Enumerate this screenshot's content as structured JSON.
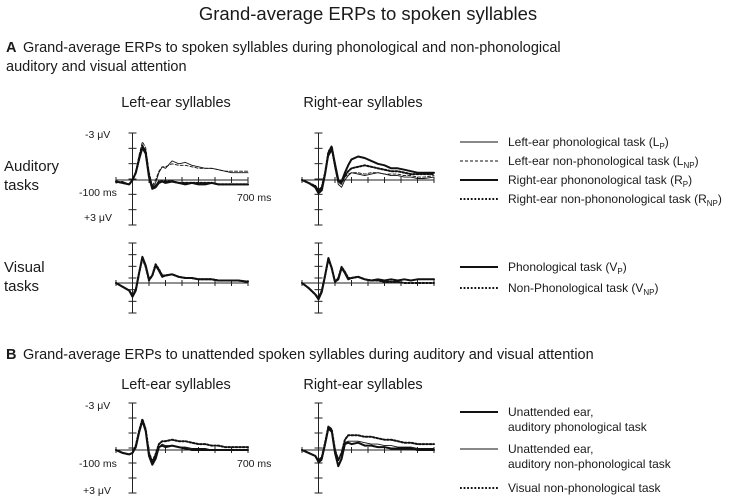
{
  "figure": {
    "title": "Grand-average ERPs to spoken syllables",
    "panel_a": {
      "letter": "A",
      "title_line1": "Grand-average ERPs to spoken syllables during phonological and non-phonological",
      "title_line2": "auditory and visual attention",
      "col_left": "Left-ear syllables",
      "col_right": "Right-ear syllables",
      "row_auditory_1": "Auditory",
      "row_auditory_2": "tasks",
      "row_visual_1": "Visual",
      "row_visual_2": "tasks",
      "axis_top": "-3 μV",
      "axis_bottom": "+3 μV",
      "axis_left": "-100 ms",
      "axis_right": "700 ms"
    },
    "panel_b": {
      "letter": "B",
      "title": "Grand-average ERPs to unattended spoken syllables during auditory and visual attention",
      "col_left": "Left-ear syllables",
      "col_right": "Right-ear syllables",
      "axis_top": "-3 μV",
      "axis_bottom": "+3 μV",
      "axis_left": "-100 ms",
      "axis_right": "700 ms"
    },
    "legend_a_auditory": [
      {
        "main": "Left-ear phonological task (L",
        "sub": "P",
        "close": ")",
        "style": "thin-solid"
      },
      {
        "main": "Left-ear non-phonological task (L",
        "sub": "NP",
        "close": ")",
        "style": "thin-dashed"
      },
      {
        "main": "Right-ear phononological task (R",
        "sub": "P",
        "close": ")",
        "style": "thick-solid"
      },
      {
        "main": "Right-ear non-phononological task (R",
        "sub": "NP",
        "close": ")",
        "style": "thick-dotted"
      }
    ],
    "legend_a_visual": [
      {
        "main": "Phonological task (V",
        "sub": "P",
        "close": ")",
        "style": "thick-solid"
      },
      {
        "main": "Non-Phonological task (V",
        "sub": "NP",
        "close": ")",
        "style": "thick-dotted"
      }
    ],
    "legend_b": [
      {
        "line1": "Unattended ear,",
        "line2": "auditory phonological task",
        "style": "thick-solid"
      },
      {
        "line1": "Unattended ear,",
        "line2": "auditory non-phonological task",
        "style": "thin-solid"
      },
      {
        "line1": "Visual non-phonological task",
        "line2": "",
        "style": "thick-dotted"
      }
    ]
  },
  "chart_data": [
    {
      "type": "line",
      "panel": "A - Auditory tasks - Left-ear syllables",
      "xlabel": "",
      "ylabel": "",
      "xlim": [
        -100,
        700
      ],
      "ylim": [
        3,
        -3
      ],
      "y_axis_inverted": true,
      "unit_x": "ms",
      "unit_y": "μV",
      "x": [
        -100,
        -60,
        -20,
        0,
        20,
        40,
        60,
        80,
        100,
        120,
        140,
        160,
        180,
        200,
        240,
        280,
        320,
        360,
        400,
        440,
        480,
        520,
        560,
        600,
        640,
        700
      ],
      "series": [
        {
          "name": "Left-ear phonological task (LP)",
          "style": "thin-solid",
          "values": [
            0.2,
            0.1,
            0.3,
            0.0,
            -0.5,
            -1.5,
            -2.4,
            -2.0,
            -0.5,
            0.5,
            0.2,
            -0.5,
            -0.9,
            -0.8,
            -1.3,
            -1.1,
            -1.2,
            -1.0,
            -0.9,
            -0.8,
            -0.8,
            -0.7,
            -0.6,
            -0.5,
            -0.5,
            -0.5
          ]
        },
        {
          "name": "Left-ear non-phonological task (LNP)",
          "style": "thin-dashed",
          "values": [
            0.2,
            0.1,
            0.3,
            0.0,
            -0.6,
            -1.7,
            -2.6,
            -2.2,
            -0.6,
            0.4,
            0.0,
            -0.6,
            -0.9,
            -0.9,
            -1.1,
            -1.0,
            -1.0,
            -0.9,
            -0.8,
            -0.8,
            -0.8,
            -0.7,
            -0.6,
            -0.6,
            -0.6,
            -0.6
          ]
        },
        {
          "name": "Right-ear phononological task (RP)",
          "style": "thick-solid",
          "values": [
            0.1,
            0.2,
            0.3,
            0.0,
            -0.5,
            -1.4,
            -2.2,
            -1.8,
            -0.2,
            0.6,
            0.5,
            0.2,
            0.1,
            0.2,
            0.1,
            0.2,
            0.3,
            0.2,
            0.3,
            0.3,
            0.2,
            0.3,
            0.3,
            0.3,
            0.3,
            0.3
          ]
        },
        {
          "name": "Right-ear non-phononological task (RNP)",
          "style": "thick-dotted",
          "values": [
            0.1,
            0.2,
            0.3,
            0.0,
            -0.5,
            -1.5,
            -2.3,
            -1.9,
            -0.3,
            0.5,
            0.4,
            0.1,
            0.1,
            0.1,
            0.1,
            0.2,
            0.2,
            0.2,
            0.2,
            0.2,
            0.2,
            0.3,
            0.3,
            0.3,
            0.3,
            0.3
          ]
        }
      ]
    },
    {
      "type": "line",
      "panel": "A - Auditory tasks - Right-ear syllables",
      "xlabel": "",
      "ylabel": "",
      "xlim": [
        -100,
        700
      ],
      "ylim": [
        3,
        -3
      ],
      "y_axis_inverted": true,
      "unit_x": "ms",
      "unit_y": "μV",
      "x": [
        -100,
        -60,
        -20,
        0,
        20,
        40,
        60,
        80,
        100,
        120,
        140,
        160,
        180,
        200,
        240,
        280,
        320,
        360,
        400,
        440,
        480,
        520,
        560,
        600,
        640,
        700
      ],
      "series": [
        {
          "name": "Left-ear phonological task (LP)",
          "style": "thin-solid",
          "values": [
            0.0,
            0.2,
            0.4,
            0.8,
            0.6,
            -0.5,
            -1.6,
            -2.0,
            -0.8,
            0.3,
            0.5,
            0.0,
            -0.3,
            -0.5,
            -0.4,
            -0.3,
            -0.4,
            -0.5,
            -0.4,
            -0.3,
            -0.3,
            -0.2,
            -0.2,
            -0.1,
            -0.1,
            -0.2
          ]
        },
        {
          "name": "Left-ear non-phonological task (LNP)",
          "style": "thin-dashed",
          "values": [
            0.0,
            0.2,
            0.4,
            0.7,
            0.5,
            -0.6,
            -1.7,
            -2.1,
            -0.9,
            0.2,
            0.3,
            -0.2,
            -0.4,
            -0.5,
            -0.5,
            -0.4,
            -0.5,
            -0.5,
            -0.4,
            -0.4,
            -0.4,
            -0.3,
            -0.3,
            -0.2,
            -0.2,
            -0.3
          ]
        },
        {
          "name": "Right-ear phononological task (RP)",
          "style": "thick-solid",
          "values": [
            0.0,
            0.2,
            0.5,
            0.9,
            0.7,
            -0.4,
            -1.8,
            -2.2,
            -1.1,
            0.0,
            0.1,
            -0.5,
            -1.0,
            -1.4,
            -1.6,
            -1.5,
            -1.3,
            -1.1,
            -1.0,
            -0.8,
            -0.8,
            -0.7,
            -0.6,
            -0.5,
            -0.5,
            -0.5
          ]
        },
        {
          "name": "Right-ear non-phononological task (RNP)",
          "style": "thick-dotted",
          "values": [
            0.0,
            0.2,
            0.4,
            0.7,
            0.5,
            -0.5,
            -1.9,
            -2.3,
            -1.0,
            0.1,
            0.2,
            -0.3,
            -0.6,
            -0.8,
            -0.9,
            -1.0,
            -0.9,
            -0.8,
            -0.7,
            -0.6,
            -0.6,
            -0.5,
            -0.4,
            -0.4,
            -0.4,
            -0.4
          ]
        }
      ]
    },
    {
      "type": "line",
      "panel": "A - Visual tasks - Left-ear syllables",
      "xlabel": "",
      "ylabel": "",
      "xlim": [
        -100,
        700
      ],
      "ylim": [
        3,
        -3
      ],
      "y_axis_inverted": true,
      "unit_x": "ms",
      "unit_y": "μV",
      "x": [
        -100,
        -60,
        -20,
        0,
        20,
        40,
        60,
        80,
        100,
        120,
        140,
        160,
        180,
        200,
        240,
        280,
        320,
        360,
        400,
        440,
        480,
        520,
        560,
        600,
        640,
        700
      ],
      "series": [
        {
          "name": "Phonological task (VP)",
          "style": "thick-solid",
          "values": [
            0.0,
            0.3,
            0.6,
            1.1,
            0.6,
            -0.8,
            -2.1,
            -1.4,
            -0.3,
            -0.6,
            -1.4,
            -1.0,
            -0.5,
            -0.6,
            -0.7,
            -0.5,
            -0.4,
            -0.4,
            -0.3,
            -0.3,
            -0.3,
            -0.2,
            -0.2,
            -0.2,
            -0.2,
            -0.1
          ]
        },
        {
          "name": "Non-Phonological task (VNP)",
          "style": "thick-dotted",
          "values": [
            0.0,
            0.3,
            0.6,
            1.0,
            0.5,
            -0.8,
            -2.0,
            -1.3,
            -0.2,
            -0.6,
            -1.5,
            -1.1,
            -0.6,
            -0.6,
            -0.7,
            -0.5,
            -0.4,
            -0.4,
            -0.3,
            -0.3,
            -0.3,
            -0.2,
            -0.2,
            -0.2,
            -0.2,
            -0.1
          ]
        }
      ]
    },
    {
      "type": "line",
      "panel": "A - Visual tasks - Right-ear syllables",
      "xlabel": "",
      "ylabel": "",
      "xlim": [
        -100,
        700
      ],
      "ylim": [
        3,
        -3
      ],
      "y_axis_inverted": true,
      "unit_x": "ms",
      "unit_y": "μV",
      "x": [
        -100,
        -60,
        -20,
        0,
        20,
        40,
        60,
        80,
        100,
        120,
        140,
        160,
        180,
        200,
        240,
        280,
        320,
        360,
        400,
        440,
        480,
        520,
        560,
        600,
        640,
        700
      ],
      "series": [
        {
          "name": "Phonological task (VP)",
          "style": "thick-solid",
          "values": [
            0.0,
            0.4,
            0.9,
            1.3,
            0.7,
            -0.6,
            -2.0,
            -1.2,
            -0.1,
            -0.3,
            -1.2,
            -0.8,
            -0.3,
            -0.4,
            -0.5,
            -0.3,
            -0.2,
            -0.3,
            -0.2,
            -0.3,
            -0.2,
            -0.3,
            -0.2,
            -0.3,
            -0.3,
            -0.3
          ]
        },
        {
          "name": "Non-Phonological task (VNP)",
          "style": "thick-dotted",
          "values": [
            0.0,
            0.4,
            0.9,
            1.2,
            0.6,
            -0.6,
            -1.9,
            -1.2,
            -0.1,
            -0.4,
            -1.3,
            -0.9,
            -0.4,
            -0.4,
            -0.5,
            -0.3,
            -0.2,
            -0.2,
            -0.1,
            -0.1,
            -0.1,
            0.0,
            0.0,
            0.0,
            0.0,
            0.0
          ]
        }
      ]
    },
    {
      "type": "line",
      "panel": "B - Left-ear syllables",
      "xlabel": "",
      "ylabel": "",
      "xlim": [
        -100,
        700
      ],
      "ylim": [
        3,
        -3
      ],
      "y_axis_inverted": true,
      "unit_x": "ms",
      "unit_y": "μV",
      "x": [
        -100,
        -60,
        -20,
        0,
        20,
        40,
        60,
        80,
        100,
        120,
        140,
        160,
        180,
        200,
        240,
        280,
        320,
        360,
        400,
        440,
        480,
        520,
        560,
        600,
        640,
        700
      ],
      "series": [
        {
          "name": "Unattended ear, auditory phonological task",
          "style": "thick-solid",
          "values": [
            0.0,
            0.2,
            0.3,
            0.2,
            -0.2,
            -1.2,
            -2.0,
            -1.3,
            0.4,
            1.0,
            0.6,
            -0.2,
            -0.3,
            -0.2,
            -0.3,
            -0.2,
            -0.1,
            0.0,
            0.0,
            0.0,
            0.0,
            0.0,
            0.0,
            0.0,
            0.0,
            0.0
          ]
        },
        {
          "name": "Unattended ear, auditory non-phonological task",
          "style": "thin-solid",
          "values": [
            0.0,
            0.2,
            0.3,
            0.2,
            -0.2,
            -1.1,
            -1.9,
            -1.2,
            0.3,
            0.9,
            0.5,
            -0.2,
            -0.4,
            -0.3,
            -0.3,
            -0.2,
            -0.2,
            -0.1,
            -0.1,
            -0.1,
            0.0,
            0.0,
            0.0,
            0.0,
            0.0,
            0.0
          ]
        },
        {
          "name": "Visual non-phonological task",
          "style": "thick-dotted",
          "values": [
            0.0,
            0.2,
            0.3,
            0.2,
            -0.3,
            -1.3,
            -2.1,
            -1.4,
            0.2,
            0.8,
            0.3,
            -0.4,
            -0.6,
            -0.6,
            -0.7,
            -0.6,
            -0.6,
            -0.5,
            -0.4,
            -0.4,
            -0.3,
            -0.3,
            -0.2,
            -0.2,
            -0.2,
            -0.2
          ]
        }
      ]
    },
    {
      "type": "line",
      "panel": "B - Right-ear syllables",
      "xlabel": "",
      "ylabel": "",
      "xlim": [
        -100,
        700
      ],
      "ylim": [
        3,
        -3
      ],
      "y_axis_inverted": true,
      "unit_x": "ms",
      "unit_y": "μV",
      "x": [
        -100,
        -60,
        -20,
        0,
        20,
        40,
        60,
        80,
        100,
        120,
        140,
        160,
        180,
        200,
        240,
        280,
        320,
        360,
        400,
        440,
        480,
        520,
        560,
        600,
        640,
        700
      ],
      "series": [
        {
          "name": "Unattended ear, auditory phonological task",
          "style": "thick-solid",
          "values": [
            0.0,
            0.2,
            0.4,
            0.8,
            0.6,
            -0.4,
            -1.5,
            -1.3,
            0.2,
            1.1,
            0.6,
            -0.4,
            -0.5,
            -0.4,
            -0.5,
            -0.3,
            -0.3,
            -0.2,
            -0.2,
            -0.1,
            -0.1,
            -0.1,
            -0.1,
            0.0,
            0.0,
            0.0
          ]
        },
        {
          "name": "Unattended ear, auditory non-phonological task",
          "style": "thin-solid",
          "values": [
            0.0,
            0.2,
            0.4,
            0.9,
            0.7,
            -0.3,
            -1.4,
            -1.2,
            0.2,
            1.0,
            0.5,
            -0.5,
            -0.6,
            -0.6,
            -0.6,
            -0.5,
            -0.4,
            -0.4,
            -0.3,
            -0.3,
            -0.2,
            -0.2,
            -0.2,
            -0.1,
            -0.1,
            -0.1
          ]
        },
        {
          "name": "Visual non-phonological task",
          "style": "thick-dotted",
          "values": [
            0.0,
            0.2,
            0.4,
            0.7,
            0.5,
            -0.5,
            -1.6,
            -1.4,
            0.0,
            0.7,
            0.2,
            -0.7,
            -1.0,
            -1.0,
            -1.0,
            -0.9,
            -0.9,
            -0.8,
            -0.7,
            -0.7,
            -0.6,
            -0.5,
            -0.5,
            -0.4,
            -0.4,
            -0.4
          ]
        }
      ]
    }
  ]
}
